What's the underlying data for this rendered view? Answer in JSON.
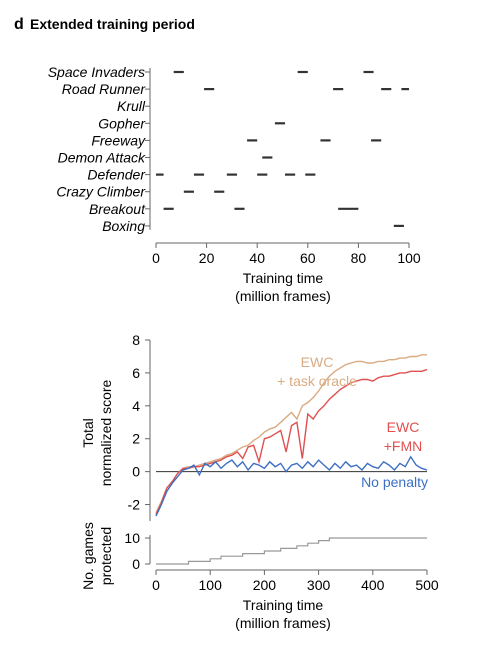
{
  "panel_letter": "d",
  "panel_title": "Extended training period",
  "chart_data": [
    {
      "type": "timeline",
      "xlabel": "Training time\n(million frames)",
      "xlim": [
        0,
        100
      ],
      "xticks": [
        "0",
        "20",
        "40",
        "60",
        "80",
        "100"
      ],
      "grid": false,
      "tasks": [
        {
          "name": "Space Invaders",
          "segments": [
            [
              7,
              11
            ],
            [
              56,
              60
            ],
            [
              82,
              86
            ]
          ]
        },
        {
          "name": "Road Runner",
          "segments": [
            [
              19,
              23
            ],
            [
              70,
              74
            ],
            [
              89,
              93
            ],
            [
              97,
              100
            ]
          ]
        },
        {
          "name": "Krull",
          "segments": []
        },
        {
          "name": "Gopher",
          "segments": [
            [
              47,
              51
            ]
          ]
        },
        {
          "name": "Freeway",
          "segments": [
            [
              36,
              40
            ],
            [
              65,
              69
            ],
            [
              85,
              89
            ]
          ]
        },
        {
          "name": "Demon Attack",
          "segments": [
            [
              42,
              46
            ]
          ]
        },
        {
          "name": "Defender",
          "segments": [
            [
              0,
              3
            ],
            [
              15,
              19
            ],
            [
              28,
              32
            ],
            [
              40,
              44
            ],
            [
              51,
              55
            ],
            [
              59,
              63
            ]
          ]
        },
        {
          "name": "Crazy Climber",
          "segments": [
            [
              11,
              15
            ],
            [
              23,
              27
            ]
          ]
        },
        {
          "name": "Breakout",
          "segments": [
            [
              3,
              7
            ],
            [
              31,
              35
            ],
            [
              72,
              80
            ]
          ]
        },
        {
          "name": "Boxing",
          "segments": [
            [
              94,
              98
            ]
          ]
        }
      ]
    },
    {
      "type": "line",
      "ylabel": "Total\nnormalized score",
      "ylim": [
        -3,
        8
      ],
      "yticks": [
        "8",
        "6",
        "4",
        "2",
        "0",
        "-2"
      ],
      "xlim": [
        0,
        500
      ],
      "reference_line": 0,
      "grid": false,
      "series": [
        {
          "name": "EWC\n+ task oracle",
          "color": "#d9ab82",
          "x": [
            0,
            10,
            20,
            30,
            40,
            50,
            60,
            70,
            80,
            90,
            100,
            110,
            120,
            130,
            140,
            150,
            160,
            170,
            180,
            190,
            200,
            210,
            220,
            230,
            240,
            250,
            260,
            270,
            280,
            290,
            300,
            310,
            320,
            330,
            340,
            350,
            360,
            370,
            380,
            390,
            400,
            410,
            420,
            430,
            440,
            450,
            460,
            470,
            480,
            490,
            500
          ],
          "values": [
            -2.5,
            -1.8,
            -1.0,
            -0.6,
            -0.1,
            0.2,
            0.3,
            0.3,
            0.4,
            0.5,
            0.6,
            0.7,
            0.8,
            1.0,
            1.1,
            1.3,
            1.5,
            1.6,
            1.9,
            2.1,
            2.4,
            2.6,
            2.7,
            3.0,
            3.3,
            3.6,
            3.2,
            4.0,
            4.2,
            4.5,
            4.9,
            5.4,
            5.8,
            6.1,
            6.3,
            6.5,
            6.6,
            6.7,
            6.7,
            6.6,
            6.6,
            6.7,
            6.7,
            6.8,
            6.8,
            6.9,
            6.9,
            7.0,
            7.0,
            7.1,
            7.1
          ]
        },
        {
          "name": "EWC\n+FMN",
          "color": "#e05050",
          "x": [
            0,
            10,
            20,
            30,
            40,
            50,
            60,
            70,
            80,
            90,
            100,
            110,
            120,
            130,
            140,
            150,
            160,
            170,
            180,
            190,
            200,
            210,
            220,
            230,
            240,
            250,
            260,
            270,
            280,
            290,
            300,
            310,
            320,
            330,
            340,
            350,
            360,
            370,
            380,
            390,
            400,
            410,
            420,
            430,
            440,
            450,
            460,
            470,
            480,
            490,
            500
          ],
          "values": [
            -2.6,
            -1.9,
            -1.0,
            -0.6,
            -0.1,
            0.2,
            0.2,
            0.3,
            0.3,
            0.4,
            0.5,
            0.6,
            0.7,
            0.9,
            1.0,
            1.2,
            0.8,
            1.5,
            1.6,
            0.6,
            2.0,
            2.1,
            2.3,
            2.5,
            1.2,
            2.8,
            3.0,
            0.8,
            3.5,
            3.2,
            3.7,
            4.0,
            4.4,
            4.7,
            5.0,
            5.2,
            5.4,
            5.5,
            5.6,
            5.6,
            5.5,
            5.7,
            5.8,
            5.8,
            5.9,
            6.0,
            6.0,
            6.1,
            6.1,
            6.1,
            6.2
          ]
        },
        {
          "name": "No penalty",
          "color": "#3d6fc4",
          "x": [
            0,
            10,
            20,
            30,
            40,
            50,
            60,
            70,
            80,
            90,
            100,
            110,
            120,
            130,
            140,
            150,
            160,
            170,
            180,
            190,
            200,
            210,
            220,
            230,
            240,
            250,
            260,
            270,
            280,
            290,
            300,
            310,
            320,
            330,
            340,
            350,
            360,
            370,
            380,
            390,
            400,
            410,
            420,
            430,
            440,
            450,
            460,
            470,
            480,
            490,
            500
          ],
          "values": [
            -2.7,
            -2.0,
            -1.2,
            -0.7,
            -0.3,
            0.1,
            0.2,
            0.4,
            -0.2,
            0.5,
            0.3,
            0.6,
            0.2,
            0.5,
            0.7,
            0.3,
            0.6,
            0.1,
            0.5,
            0.4,
            0.2,
            0.6,
            0.3,
            0.5,
            0.0,
            0.4,
            0.5,
            0.2,
            0.6,
            0.3,
            0.7,
            0.4,
            0.1,
            0.5,
            0.2,
            0.6,
            0.3,
            0.4,
            0.1,
            0.5,
            0.3,
            0.2,
            0.6,
            0.4,
            0.1,
            0.5,
            0.3,
            0.9,
            0.4,
            0.2,
            0.1
          ]
        }
      ]
    },
    {
      "type": "line",
      "ylabel": "No. games\nprotected",
      "yticks": [
        "10",
        "0"
      ],
      "ylim": [
        0,
        10
      ],
      "xlim": [
        0,
        500
      ],
      "xticks": [
        "0",
        "100",
        "200",
        "300",
        "400",
        "500"
      ],
      "xlabel": "Training time\n(million frames)",
      "series": [
        {
          "color": "#999999",
          "x": [
            0,
            60,
            100,
            120,
            160,
            200,
            230,
            260,
            280,
            300,
            320,
            500
          ],
          "values": [
            0,
            1,
            2,
            3,
            4,
            5,
            6,
            7,
            8,
            9,
            10,
            10
          ]
        }
      ]
    }
  ]
}
